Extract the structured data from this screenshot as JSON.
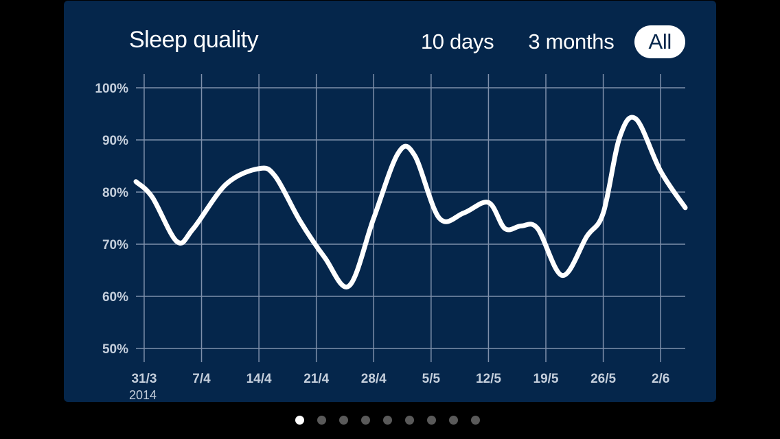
{
  "card": {
    "title": "Sleep quality",
    "ranges": [
      {
        "label": "10 days",
        "active": false
      },
      {
        "label": "3 months",
        "active": false
      },
      {
        "label": "All",
        "active": true
      }
    ]
  },
  "pager": {
    "count": 9,
    "active_index": 0
  },
  "colors": {
    "background": "#000000",
    "card": "#05264b",
    "grid": "#7f90ab",
    "line": "#ffffff",
    "tick_text": "#c4cedb",
    "inactive_dot": "#5a5a5a"
  },
  "chart_data": {
    "type": "line",
    "title": "Sleep quality",
    "xlabel": "",
    "ylabel": "",
    "ylim": [
      50,
      100
    ],
    "y_ticks": [
      "50%",
      "60%",
      "70%",
      "80%",
      "90%",
      "100%"
    ],
    "y_tick_values": [
      50,
      60,
      70,
      80,
      90,
      100
    ],
    "x_ticks": [
      "31/3",
      "7/4",
      "14/4",
      "21/4",
      "28/4",
      "5/5",
      "12/5",
      "19/5",
      "26/5",
      "2/6"
    ],
    "x_tick_dates": [
      "2014-03-31",
      "2014-04-07",
      "2014-04-14",
      "2014-04-21",
      "2014-04-28",
      "2014-05-05",
      "2014-05-12",
      "2014-05-19",
      "2014-05-26",
      "2014-06-02"
    ],
    "x_sublabel": "2014",
    "xlim": [
      "2014-03-30",
      "2014-06-05"
    ],
    "grid": true,
    "legend": "none",
    "series": [
      {
        "x": [
          "2014-03-30",
          "2014-04-01",
          "2014-04-04",
          "2014-04-06",
          "2014-04-10",
          "2014-04-14",
          "2014-04-16",
          "2014-04-19",
          "2014-04-22",
          "2014-04-25",
          "2014-04-28",
          "2014-05-01",
          "2014-05-03",
          "2014-05-06",
          "2014-05-09",
          "2014-05-12",
          "2014-05-14",
          "2014-05-16",
          "2014-05-18",
          "2014-05-21",
          "2014-05-24",
          "2014-05-26",
          "2014-05-28",
          "2014-05-30",
          "2014-06-02",
          "2014-06-05"
        ],
        "values": [
          82,
          79,
          70.5,
          73,
          81.5,
          84.5,
          83,
          74.5,
          67.5,
          62,
          75,
          87.5,
          87,
          75,
          76,
          78,
          73,
          73.5,
          73,
          64,
          71.5,
          76,
          90.5,
          94,
          84,
          77
        ]
      }
    ]
  }
}
